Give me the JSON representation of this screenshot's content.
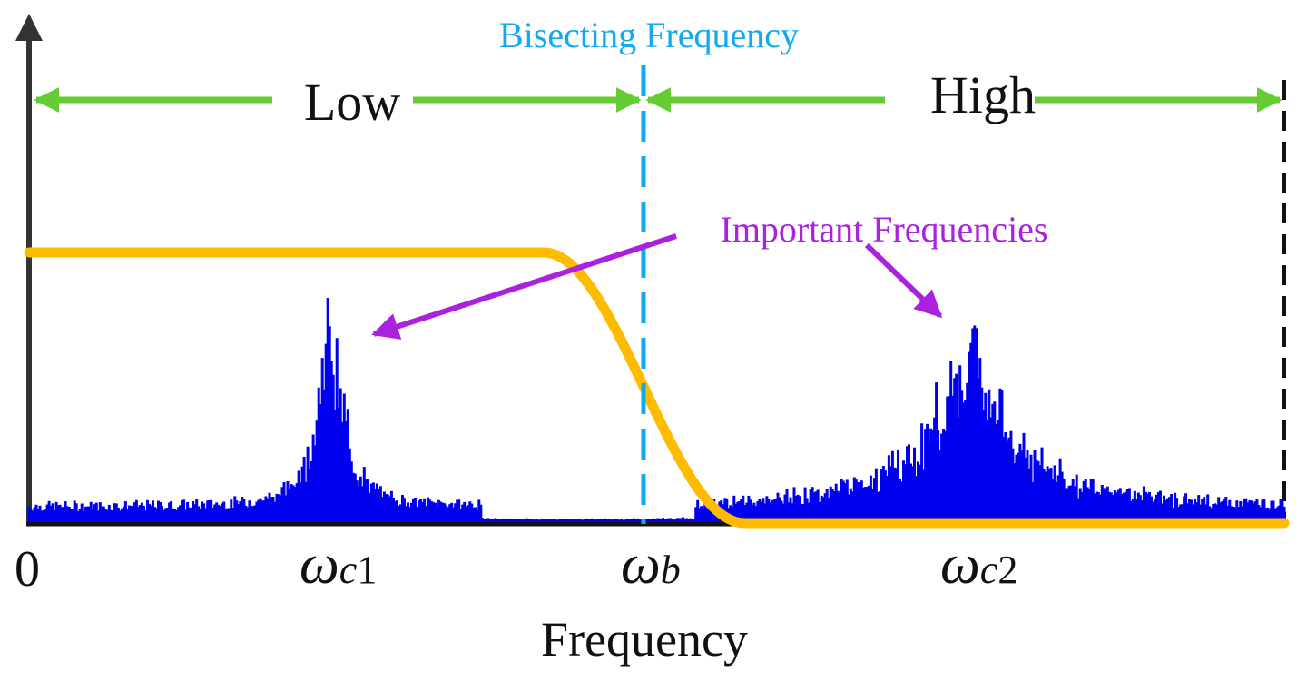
{
  "diagram": {
    "title": "Bisecting Frequency",
    "bands": {
      "low": "Low",
      "high": "High"
    },
    "annotation": "Important Frequencies",
    "origin_label": "0",
    "ticks": {
      "wc1": {
        "symbol": "ω",
        "sub": "c",
        "num": "1"
      },
      "wb": {
        "symbol": "ω",
        "sub": "b"
      },
      "wc2": {
        "symbol": "ω",
        "sub": "c",
        "num": "2"
      }
    },
    "xlabel": "Frequency",
    "colors": {
      "spectrum": "#0000ee",
      "filter": "#ffbb00",
      "bisect": "#11aaee",
      "band_arrow": "#66cc33",
      "annotation": "#aa22dd",
      "axis": "#333333"
    }
  },
  "chart_data": {
    "type": "line",
    "title": "Bisecting Frequency",
    "xlabel": "Frequency",
    "ylabel": "",
    "xlim": [
      0,
      1
    ],
    "ylim": [
      0,
      1
    ],
    "x_ticks": [
      {
        "x": 0.0,
        "label": "0"
      },
      {
        "x": 0.24,
        "label": "ωc1"
      },
      {
        "x": 0.5,
        "label": "ωb"
      },
      {
        "x": 0.75,
        "label": "ωc2"
      }
    ],
    "series": [
      {
        "name": "spectrum",
        "kind": "magnitude",
        "peaks": [
          {
            "center": 0.24,
            "height": 1.0,
            "width": 0.012
          },
          {
            "center": 0.75,
            "height": 0.9,
            "width": 0.03
          }
        ],
        "noise_floor": 0.08
      },
      {
        "name": "filter",
        "kind": "lowpass",
        "level": 1.0,
        "transition_start": 0.41,
        "transition_end": 0.57
      }
    ],
    "annotations": [
      {
        "text": "Important Frequencies",
        "targets": [
          "ωc1",
          "ωc2"
        ]
      }
    ],
    "bands": [
      {
        "label": "Low",
        "from": 0.0,
        "to": 0.5
      },
      {
        "label": "High",
        "from": 0.5,
        "to": 1.0
      }
    ]
  }
}
